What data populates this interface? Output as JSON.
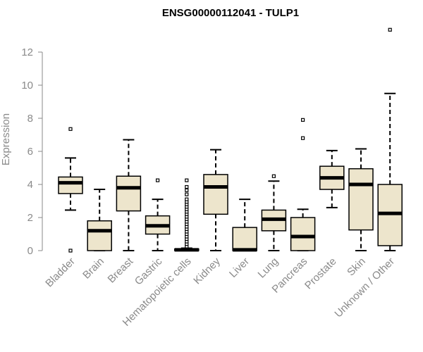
{
  "chart_data": {
    "type": "boxplot",
    "title": "ENSG00000112041 - TULP1",
    "xlabel": "",
    "ylabel": "Expression",
    "ylim": [
      0,
      12.5
    ],
    "yticks": [
      0,
      2,
      4,
      6,
      8,
      10,
      12
    ],
    "grid": false,
    "box_fill": "#ede5cc",
    "categories": [
      "Bladder",
      "Brain",
      "Breast",
      "Gastric",
      "Hematopoietic cells",
      "Kidney",
      "Liver",
      "Lung",
      "Pancreas",
      "Prostate",
      "Skin",
      "Unknown / Other"
    ],
    "boxes": [
      {
        "whisker_low": 2.45,
        "q1": 3.45,
        "median": 4.1,
        "q3": 4.45,
        "whisker_high": 5.6,
        "outliers": [
          7.35,
          0.0
        ]
      },
      {
        "whisker_low": 0.0,
        "q1": 0.0,
        "median": 1.2,
        "q3": 1.8,
        "whisker_high": 3.7,
        "outliers": []
      },
      {
        "whisker_low": 0.0,
        "q1": 2.4,
        "median": 3.8,
        "q3": 4.5,
        "whisker_high": 6.7,
        "outliers": []
      },
      {
        "whisker_low": 0.0,
        "q1": 1.0,
        "median": 1.5,
        "q3": 2.1,
        "whisker_high": 3.1,
        "outliers": [
          4.25
        ]
      },
      {
        "whisker_low": 0.0,
        "q1": 0.0,
        "median": 0.05,
        "q3": 0.1,
        "whisker_high": 0.15,
        "outliers": [
          0.25,
          0.4,
          0.55,
          0.7,
          0.85,
          1.0,
          1.15,
          1.3,
          1.45,
          1.6,
          1.75,
          1.9,
          2.05,
          2.2,
          2.35,
          2.5,
          2.65,
          2.8,
          2.95,
          3.1,
          3.4,
          3.65,
          3.85,
          4.25
        ]
      },
      {
        "whisker_low": 0.0,
        "q1": 2.2,
        "median": 3.85,
        "q3": 4.6,
        "whisker_high": 6.1,
        "outliers": []
      },
      {
        "whisker_low": 0.0,
        "q1": 0.0,
        "median": 0.05,
        "q3": 1.4,
        "whisker_high": 3.1,
        "outliers": []
      },
      {
        "whisker_low": 0.0,
        "q1": 1.2,
        "median": 1.9,
        "q3": 2.45,
        "whisker_high": 4.2,
        "outliers": [
          4.5
        ]
      },
      {
        "whisker_low": 0.0,
        "q1": 0.0,
        "median": 0.85,
        "q3": 2.0,
        "whisker_high": 2.5,
        "outliers": [
          6.8,
          7.9
        ]
      },
      {
        "whisker_low": 2.6,
        "q1": 3.7,
        "median": 4.4,
        "q3": 5.1,
        "whisker_high": 6.05,
        "outliers": []
      },
      {
        "whisker_low": 0.0,
        "q1": 1.25,
        "median": 4.0,
        "q3": 4.95,
        "whisker_high": 6.15,
        "outliers": []
      },
      {
        "whisker_low": 0.0,
        "q1": 0.3,
        "median": 2.25,
        "q3": 4.0,
        "whisker_high": 9.5,
        "outliers": [
          13.35
        ]
      }
    ]
  }
}
